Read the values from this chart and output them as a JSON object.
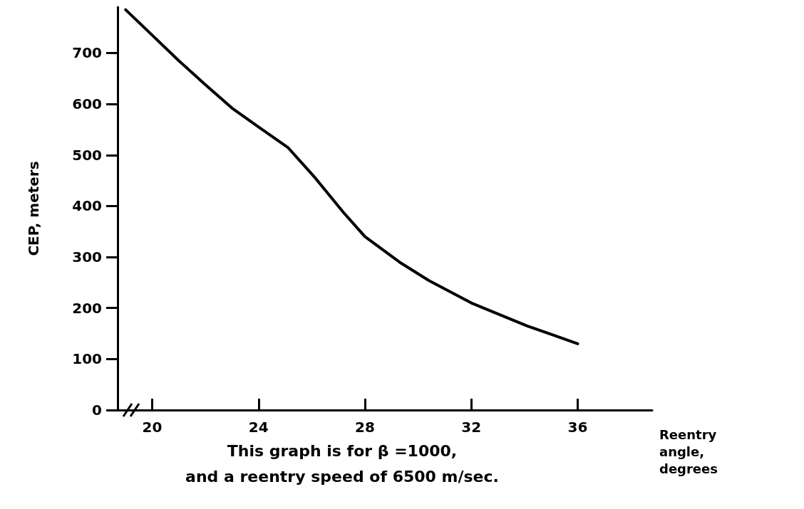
{
  "chart_data": {
    "type": "line",
    "xlabel": "Reentry angle, degrees",
    "ylabel": "CEP, meters",
    "x": [
      19.0,
      20.0,
      21.0,
      22.0,
      23.0,
      24.0,
      25.1,
      26.1,
      27.2,
      28.0,
      29.3,
      30.4,
      32.0,
      34.1,
      36.0
    ],
    "series": [
      {
        "color": "#000000",
        "values": [
          785,
          735,
          685,
          638,
          592,
          555,
          515,
          457,
          387,
          340,
          290,
          254,
          210,
          165,
          130
        ]
      }
    ],
    "xlim": [
      18.7,
      38.8
    ],
    "xticks": [
      20,
      24,
      28,
      32,
      36
    ],
    "ylim": [
      0,
      790
    ],
    "yticks": [
      0,
      100,
      200,
      300,
      400,
      500,
      600,
      700
    ],
    "grid": false,
    "marker": "none",
    "line_style": "solid",
    "annotations": [
      "This graph is for β =1000,",
      "and a reentry speed of 6500 m/sec."
    ]
  }
}
